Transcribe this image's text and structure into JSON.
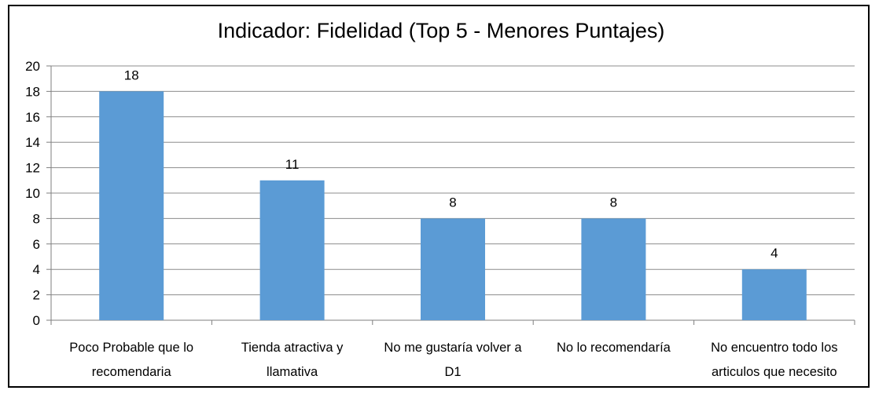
{
  "chart_data": {
    "type": "bar",
    "title": "Indicador: Fidelidad (Top 5 - Menores Puntajes)",
    "xlabel": "",
    "ylabel": "",
    "ylim": [
      0,
      20
    ],
    "y_ticks": [
      0,
      2,
      4,
      6,
      8,
      10,
      12,
      14,
      16,
      18,
      20
    ],
    "grid": true,
    "legend": "none",
    "categories": [
      [
        "Poco Probable que lo",
        "recomendaria"
      ],
      [
        "Tienda atractiva y",
        "llamativa"
      ],
      [
        "No me gustaría volver a",
        "D1"
      ],
      [
        "No lo recomendaría"
      ],
      [
        "No encuentro todo los",
        "articulos que necesito"
      ]
    ],
    "values": [
      18,
      11,
      8,
      8,
      4
    ],
    "colors": {
      "bar": "#5B9BD5",
      "grid": "#8C8C8C",
      "axis": "#7F7F7F"
    }
  }
}
